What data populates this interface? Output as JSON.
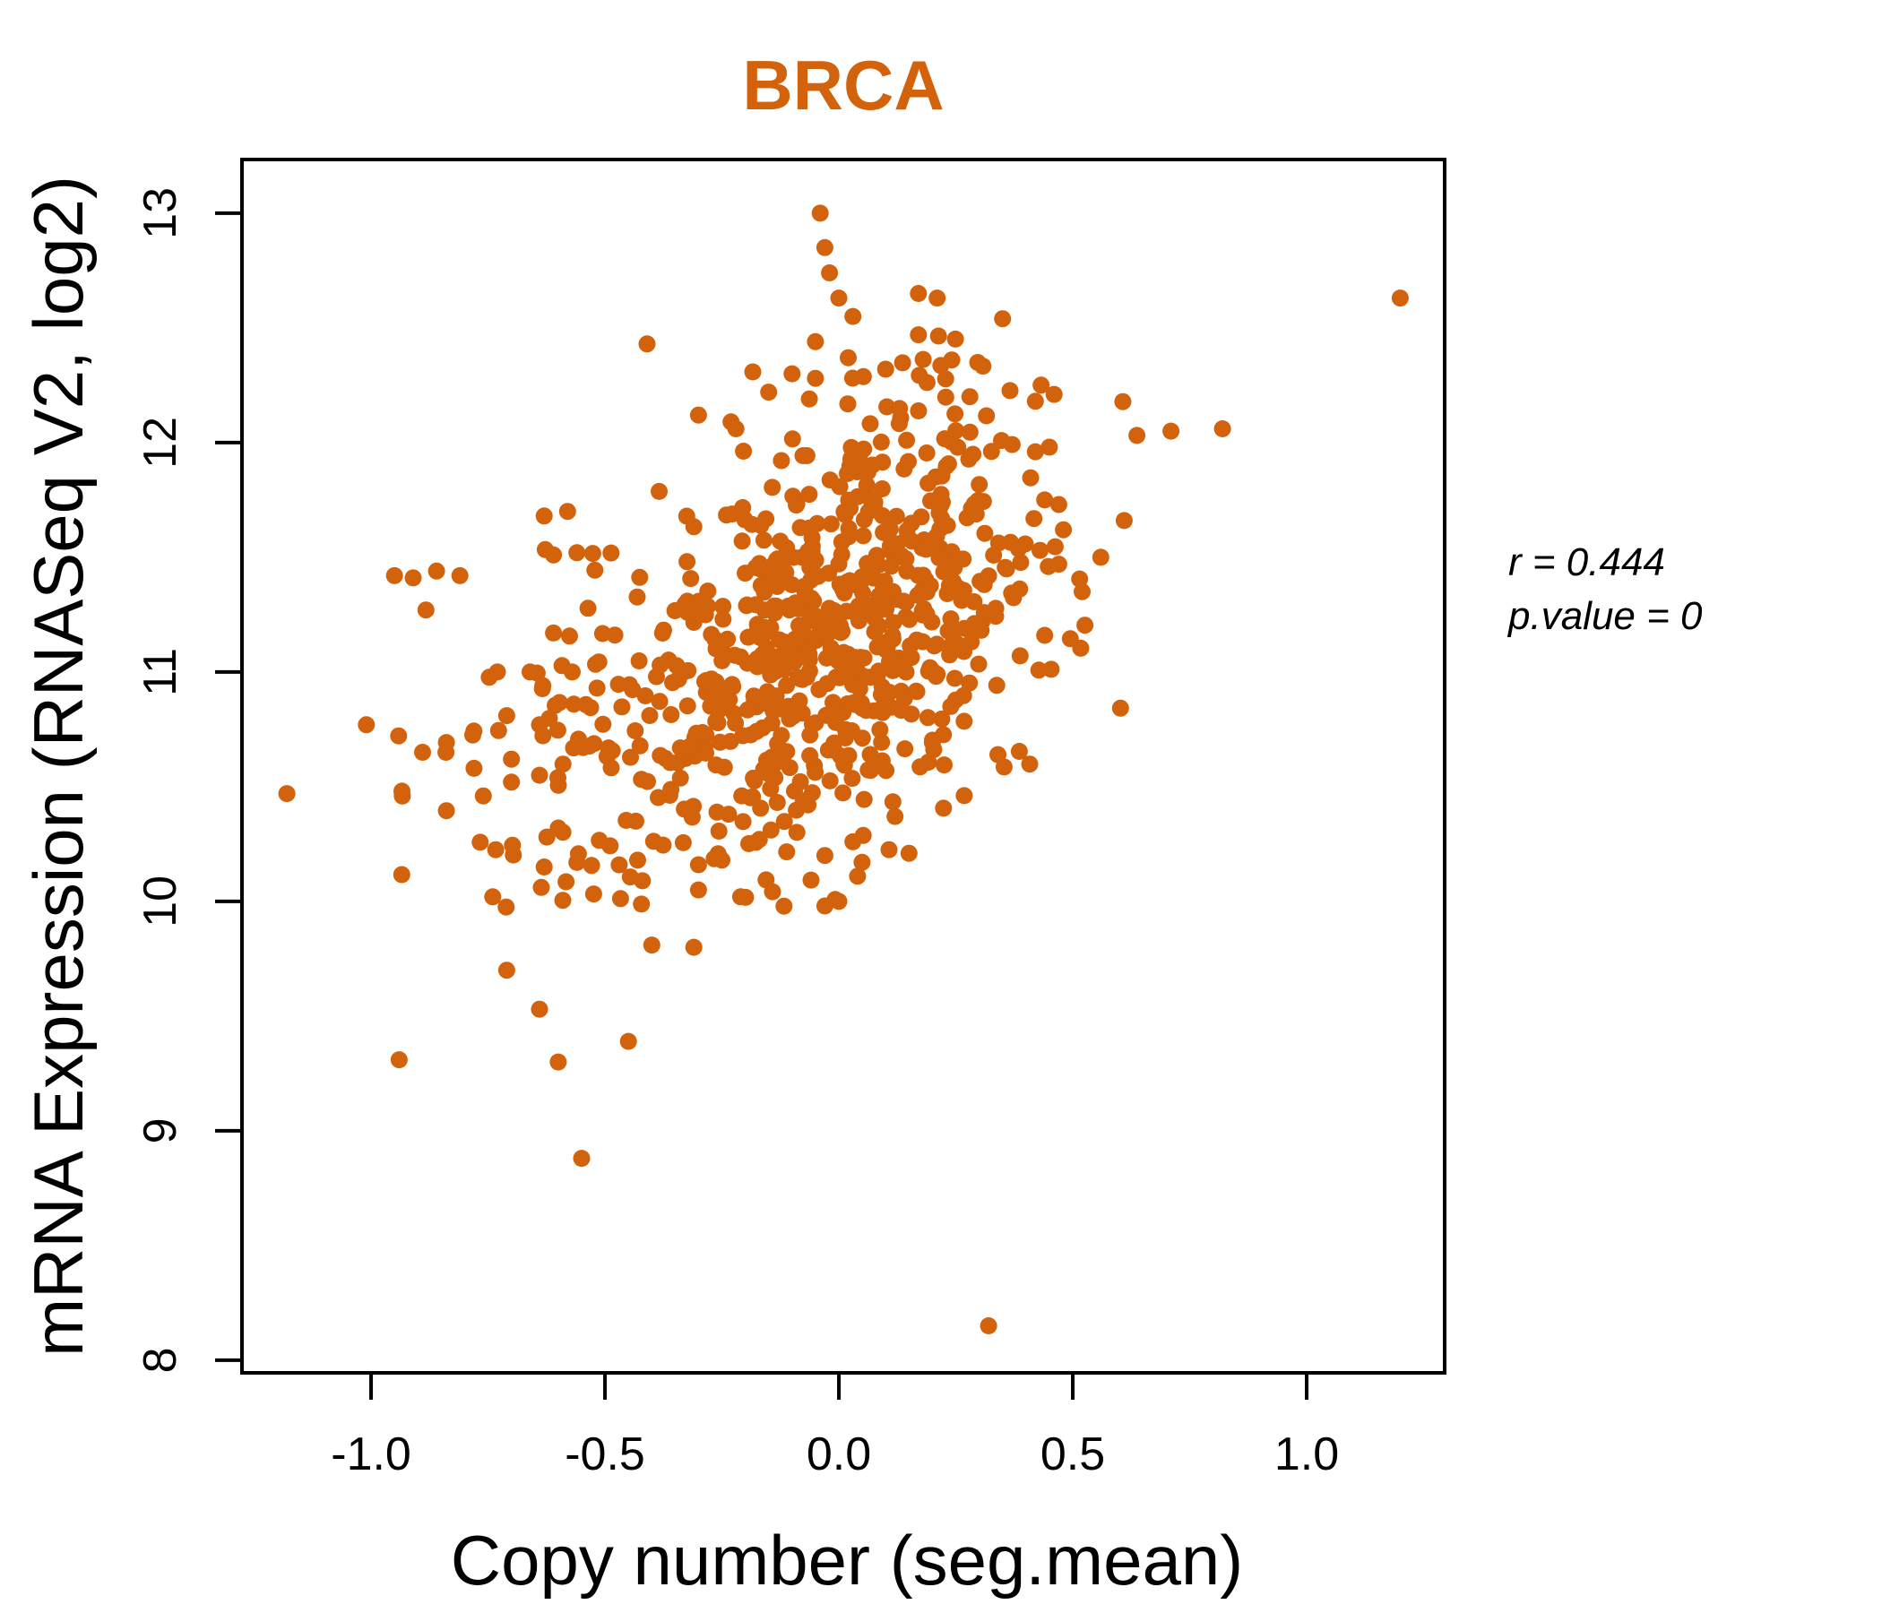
{
  "title": "BRCA",
  "annotation": {
    "line1": "r = 0.444",
    "line2": "p.value = 0"
  },
  "colors": {
    "point": "#D2620B",
    "title": "#D2620B",
    "axis": "#000000",
    "text": "#000000",
    "background": "#FFFFFF"
  },
  "chart_data": {
    "type": "scatter",
    "title": "BRCA",
    "xlabel": "Copy number (seg.mean)",
    "ylabel": "mRNA Expression (RNASeq V2, log2)",
    "xlim": [
      -1.276,
      1.295
    ],
    "ylim": [
      7.945,
      13.234
    ],
    "grid": false,
    "legend": "none",
    "correlation_r": 0.444,
    "p_value": 0,
    "x_ticks": [
      {
        "v": -1.0,
        "label": "-1.0"
      },
      {
        "v": -0.5,
        "label": "-0.5"
      },
      {
        "v": 0.0,
        "label": "0.0"
      },
      {
        "v": 0.5,
        "label": "0.5"
      },
      {
        "v": 1.0,
        "label": "1.0"
      }
    ],
    "y_ticks": [
      {
        "v": 8,
        "label": "8"
      },
      {
        "v": 9,
        "label": "9"
      },
      {
        "v": 10,
        "label": "10"
      },
      {
        "v": 11,
        "label": "11"
      },
      {
        "v": 12,
        "label": "12"
      },
      {
        "v": 13,
        "label": "13"
      }
    ],
    "n_points_approx": 823,
    "notable_points": [
      [
        -0.04,
        13.0
      ],
      [
        -0.03,
        12.85
      ],
      [
        -0.02,
        12.74
      ],
      [
        0.0,
        12.63
      ],
      [
        0.03,
        12.55
      ],
      [
        -0.05,
        12.44
      ],
      [
        0.02,
        12.37
      ],
      [
        0.17,
        12.65
      ],
      [
        0.21,
        12.63
      ],
      [
        0.35,
        12.54
      ],
      [
        0.17,
        12.47
      ],
      [
        -0.41,
        12.43
      ],
      [
        0.46,
        12.21
      ],
      [
        0.42,
        12.18
      ],
      [
        -0.1,
        12.3
      ],
      [
        -0.05,
        12.28
      ],
      [
        -0.3,
        12.12
      ],
      [
        -0.22,
        12.06
      ],
      [
        0.28,
        12.2
      ],
      [
        0.1,
        12.32
      ],
      [
        -0.15,
        12.22
      ],
      [
        1.2,
        12.63
      ],
      [
        0.71,
        12.05
      ],
      [
        0.82,
        12.06
      ],
      [
        0.61,
        11.66
      ],
      [
        0.45,
        11.98
      ],
      [
        0.42,
        11.96
      ],
      [
        0.44,
        11.75
      ],
      [
        0.47,
        11.73
      ],
      [
        0.48,
        11.62
      ],
      [
        0.47,
        11.47
      ],
      [
        0.43,
        11.53
      ],
      [
        0.44,
        11.16
      ],
      [
        0.52,
        11.35
      ],
      [
        0.56,
        11.5
      ],
      [
        -1.18,
        10.47
      ],
      [
        -1.01,
        10.77
      ],
      [
        -0.91,
        11.41
      ],
      [
        -0.81,
        11.42
      ],
      [
        -0.89,
        10.65
      ],
      [
        -0.84,
        10.65
      ],
      [
        -0.78,
        10.58
      ],
      [
        -0.7,
        10.62
      ],
      [
        -0.64,
        10.55
      ],
      [
        -0.76,
        10.46
      ],
      [
        -0.7,
        10.52
      ],
      [
        -0.6,
        10.32
      ],
      [
        -0.63,
        10.15
      ],
      [
        -0.56,
        10.17
      ],
      [
        -0.74,
        10.02
      ],
      [
        -0.61,
        11.51
      ],
      [
        -0.56,
        11.52
      ],
      [
        -0.63,
        11.68
      ],
      [
        -0.58,
        11.7
      ],
      [
        -0.61,
        11.17
      ],
      [
        -0.73,
        11.0
      ],
      [
        -0.66,
        11.0
      ],
      [
        -0.57,
        11.0
      ],
      [
        -0.71,
        10.81
      ],
      [
        -0.64,
        10.77
      ],
      [
        0.32,
        8.15
      ],
      [
        -0.55,
        8.88
      ],
      [
        -0.6,
        9.3
      ],
      [
        -0.94,
        9.31
      ],
      [
        -0.45,
        9.39
      ],
      [
        -0.64,
        9.53
      ],
      [
        -0.71,
        9.7
      ],
      [
        -0.4,
        9.81
      ],
      [
        -0.31,
        9.8
      ],
      [
        -0.17,
        10.27
      ],
      [
        -0.03,
        10.2
      ],
      [
        0.03,
        10.26
      ],
      [
        0.15,
        10.21
      ],
      [
        0.04,
        10.11
      ],
      [
        -0.3,
        10.16
      ],
      [
        -0.3,
        10.05
      ],
      [
        -0.25,
        10.18
      ],
      [
        -0.21,
        10.02
      ],
      [
        -0.03,
        9.98
      ],
      [
        0.0,
        10.0
      ],
      [
        -0.42,
        10.09
      ],
      [
        0.34,
        10.64
      ],
      [
        -0.95,
        11.42
      ],
      [
        -0.86,
        11.44
      ]
    ],
    "cloud": {
      "seed": 11,
      "n": 740,
      "components": [
        {
          "weight": 0.58,
          "mx": 0.07,
          "my": 11.33,
          "sx": 0.17,
          "sy": 0.46,
          "rho": 0.25
        },
        {
          "weight": 0.42,
          "mx": -0.28,
          "my": 10.86,
          "sx": 0.25,
          "sy": 0.47,
          "rho": 0.32
        }
      ],
      "clip": {
        "x": [
          -1.03,
          0.65
        ],
        "y": [
          9.97,
          12.5
        ]
      }
    }
  }
}
